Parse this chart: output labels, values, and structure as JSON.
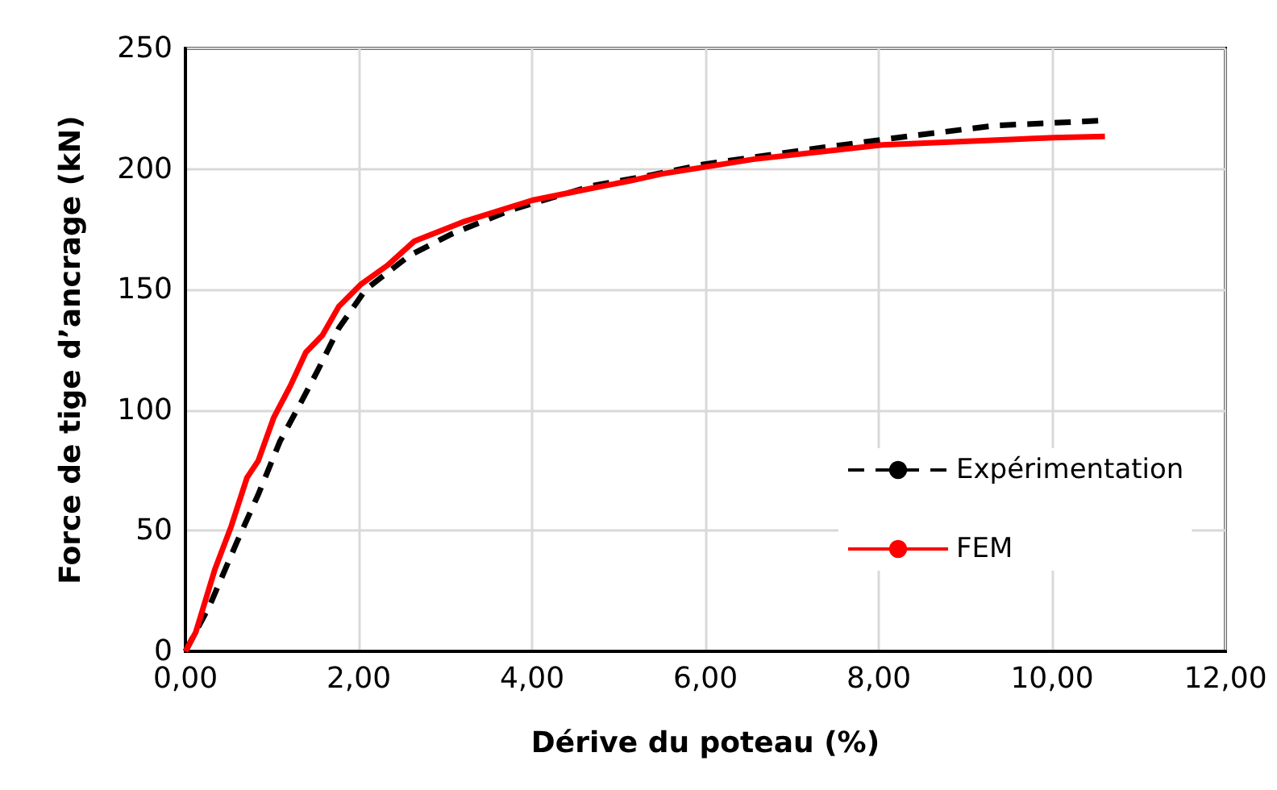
{
  "chart_data": {
    "type": "line",
    "xlabel": "Dérive du poteau (%)",
    "ylabel": "Force de tige d’ancrage (kN)",
    "xlim": [
      0,
      12
    ],
    "xticks": [
      {
        "value": 0,
        "label": "0,00"
      },
      {
        "value": 2,
        "label": "2,00"
      },
      {
        "value": 4,
        "label": "4,00"
      },
      {
        "value": 6,
        "label": "6,00"
      },
      {
        "value": 8,
        "label": "8,00"
      },
      {
        "value": 10,
        "label": "10,00"
      },
      {
        "value": 12,
        "label": "12,00"
      }
    ],
    "ylim": [
      0,
      250
    ],
    "yticks": [
      0,
      50,
      100,
      150,
      200,
      250
    ],
    "grid": true,
    "legend": "right",
    "marker": "none",
    "series": [
      {
        "name": "Expérimentation",
        "color": "#000000",
        "line_style": "dashed",
        "x": [
          0,
          0.28,
          0.59,
          0.84,
          1.09,
          1.33,
          1.52,
          1.77,
          2.08,
          2.58,
          3.07,
          3.76,
          4.69,
          5.31,
          5.99,
          7.17,
          8.22,
          9.34,
          10.55
        ],
        "values": [
          0,
          19,
          45,
          65,
          87,
          103,
          116,
          134,
          150,
          164,
          173,
          183,
          193,
          197,
          202,
          208,
          213,
          218,
          220
        ]
      },
      {
        "name": "FEM",
        "color": "#ff0000",
        "line_style": "solid",
        "x": [
          0,
          0.12,
          0.34,
          0.53,
          0.71,
          0.84,
          1.02,
          1.21,
          1.39,
          1.58,
          1.77,
          2.02,
          2.33,
          2.64,
          3.2,
          4.0,
          4.69,
          5.12,
          5.5,
          6.55,
          8.04,
          10.02,
          10.61
        ],
        "values": [
          0,
          8,
          34,
          52,
          72,
          79,
          97,
          110,
          124,
          131,
          143,
          152,
          160,
          170,
          178,
          187,
          192,
          195,
          198,
          204,
          210,
          213,
          213.5
        ]
      }
    ]
  }
}
